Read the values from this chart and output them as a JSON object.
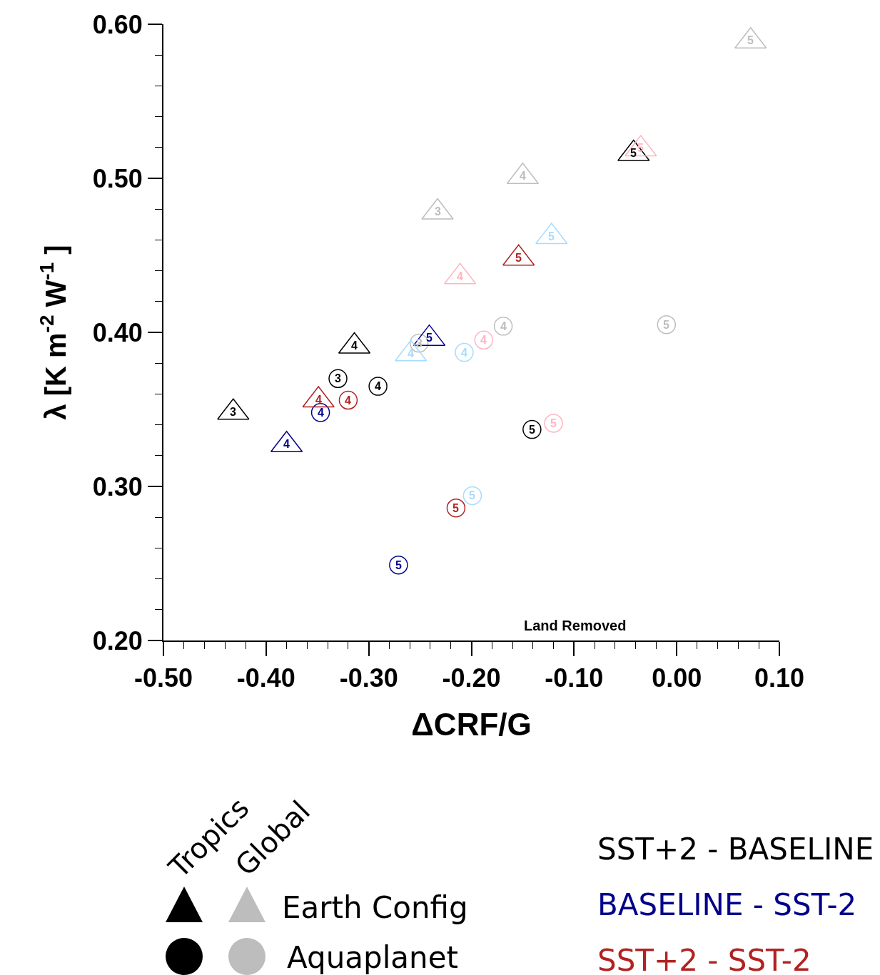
{
  "chart_data": {
    "type": "scatter",
    "xlabel": "ΔCRF/G",
    "ylabel": "λ [K m$^{-2}$ W$^{-1}$ ]",
    "xlim": [
      -0.5,
      0.1
    ],
    "ylim": [
      0.2,
      0.6
    ],
    "xticks": [
      {
        "value": -0.5,
        "label": "-0.50"
      },
      {
        "value": -0.48,
        "label": null
      },
      {
        "value": -0.46,
        "label": null
      },
      {
        "value": -0.44,
        "label": null
      },
      {
        "value": -0.42,
        "label": null
      },
      {
        "value": -0.4,
        "label": "-0.40"
      },
      {
        "value": -0.38,
        "label": null
      },
      {
        "value": -0.36,
        "label": null
      },
      {
        "value": -0.34,
        "label": null
      },
      {
        "value": -0.32,
        "label": null
      },
      {
        "value": -0.3,
        "label": "-0.30"
      },
      {
        "value": -0.28,
        "label": null
      },
      {
        "value": -0.26,
        "label": null
      },
      {
        "value": -0.24,
        "label": null
      },
      {
        "value": -0.22,
        "label": null
      },
      {
        "value": -0.2,
        "label": "-0.20"
      },
      {
        "value": -0.18,
        "label": null
      },
      {
        "value": -0.16,
        "label": null
      },
      {
        "value": -0.14,
        "label": null
      },
      {
        "value": -0.12,
        "label": null
      },
      {
        "value": -0.1,
        "label": "-0.10"
      },
      {
        "value": -0.08,
        "label": null
      },
      {
        "value": -0.06,
        "label": null
      },
      {
        "value": -0.04,
        "label": null
      },
      {
        "value": -0.02,
        "label": null
      },
      {
        "value": 0,
        "label": "0.00"
      },
      {
        "value": 0.02,
        "label": null
      },
      {
        "value": 0.04,
        "label": null
      },
      {
        "value": 0.06,
        "label": null
      },
      {
        "value": 0.08,
        "label": null
      },
      {
        "value": 0.1,
        "label": "0.10"
      }
    ],
    "yticks": [
      {
        "value": 0.2,
        "label": "0.20"
      },
      {
        "value": 0.22,
        "label": null
      },
      {
        "value": 0.24,
        "label": null
      },
      {
        "value": 0.26,
        "label": null
      },
      {
        "value": 0.28,
        "label": null
      },
      {
        "value": 0.3,
        "label": "0.30"
      },
      {
        "value": 0.32,
        "label": null
      },
      {
        "value": 0.34,
        "label": null
      },
      {
        "value": 0.36,
        "label": null
      },
      {
        "value": 0.38,
        "label": null
      },
      {
        "value": 0.4,
        "label": "0.40"
      },
      {
        "value": 0.42,
        "label": null
      },
      {
        "value": 0.44,
        "label": null
      },
      {
        "value": 0.46,
        "label": null
      },
      {
        "value": 0.48,
        "label": null
      },
      {
        "value": 0.5,
        "label": "0.50"
      },
      {
        "value": 0.52,
        "label": null
      },
      {
        "value": 0.54,
        "label": null
      },
      {
        "value": 0.56,
        "label": null
      },
      {
        "value": 0.58,
        "label": null
      },
      {
        "value": 0.6,
        "label": "0.60"
      }
    ],
    "grid": false,
    "legend": "bottom",
    "series": [
      {
        "name": "SST+2 - BASELINE",
        "color": "#000000",
        "marker": "triangle",
        "x": [
          -0.432,
          -0.314,
          -0.042
        ],
        "values": [
          0.348,
          0.391,
          0.516
        ]
      },
      {
        "color": "#000000",
        "marker": "circle",
        "x": [
          -0.33,
          -0.291,
          -0.141
        ],
        "values": [
          0.37,
          0.365,
          0.337
        ]
      },
      {
        "color": "#bdbdbd",
        "marker": "triangle",
        "x": [
          -0.233,
          -0.15,
          0.072
        ],
        "values": [
          0.478,
          0.501,
          0.589
        ]
      },
      {
        "color": "#bdbdbd",
        "marker": "circle",
        "x": [
          -0.251,
          -0.169,
          -0.01
        ],
        "values": [
          0.393,
          0.404,
          0.405
        ]
      },
      {
        "name": "BASELINE - SST-2",
        "color": "#00008b",
        "marker": "triangle",
        "x": [
          -0.38,
          -0.241
        ],
        "values": [
          0.327,
          0.396
        ]
      },
      {
        "color": "#00008b",
        "marker": "circle",
        "x": [
          -0.347,
          -0.271
        ],
        "values": [
          0.348,
          0.249
        ]
      },
      {
        "color": "#a6dcff",
        "marker": "triangle",
        "x": [
          -0.259,
          -0.122
        ],
        "values": [
          0.386,
          0.462
        ]
      },
      {
        "color": "#a6dcff",
        "marker": "circle",
        "x": [
          -0.207,
          -0.199
        ],
        "values": [
          0.387,
          0.294
        ]
      },
      {
        "name": "SST+2 - SST-2",
        "color": "#b22222",
        "marker": "triangle",
        "x": [
          -0.349,
          -0.154
        ],
        "values": [
          0.356,
          0.448
        ]
      },
      {
        "color": "#b22222",
        "marker": "circle",
        "x": [
          -0.32,
          -0.215
        ],
        "values": [
          0.356,
          0.286
        ]
      },
      {
        "color": "#ffb6c1",
        "marker": "triangle",
        "x": [
          -0.211,
          -0.035
        ],
        "values": [
          0.436,
          0.519
        ]
      },
      {
        "color": "#ffb6c1",
        "marker": "circle",
        "x": [
          -0.188,
          -0.12
        ],
        "values": [
          0.395,
          0.341
        ]
      }
    ],
    "annotations": [
      "Land Removed",
      "Tropics",
      "Global",
      "Earth Config",
      "Aquaplanet",
      {
        "text": "3",
        "x": -0.432,
        "y": 0.348
      },
      {
        "text": "4",
        "x": -0.314,
        "y": 0.391
      },
      {
        "text": "5",
        "x": -0.042,
        "y": 0.516
      },
      {
        "text": "3",
        "x": -0.33,
        "y": 0.37
      },
      {
        "text": "4",
        "x": -0.291,
        "y": 0.365
      },
      {
        "text": "5",
        "x": -0.141,
        "y": 0.337
      },
      {
        "text": "3",
        "x": -0.233,
        "y": 0.478
      },
      {
        "text": "4",
        "x": -0.15,
        "y": 0.501
      },
      {
        "text": "5",
        "x": 0.072,
        "y": 0.589
      },
      {
        "text": "3",
        "x": -0.251,
        "y": 0.393
      },
      {
        "text": "4",
        "x": -0.169,
        "y": 0.404
      },
      {
        "text": "5",
        "x": -0.01,
        "y": 0.405
      },
      {
        "text": "4",
        "x": -0.38,
        "y": 0.327
      },
      {
        "text": "5",
        "x": -0.241,
        "y": 0.396
      },
      {
        "text": "4",
        "x": -0.347,
        "y": 0.348
      },
      {
        "text": "5",
        "x": -0.271,
        "y": 0.249
      },
      {
        "text": "4",
        "x": -0.259,
        "y": 0.386
      },
      {
        "text": "5",
        "x": -0.122,
        "y": 0.462
      },
      {
        "text": "4",
        "x": -0.207,
        "y": 0.387
      },
      {
        "text": "5",
        "x": -0.199,
        "y": 0.294
      },
      {
        "text": "4",
        "x": -0.349,
        "y": 0.356
      },
      {
        "text": "5",
        "x": -0.154,
        "y": 0.448
      },
      {
        "text": "4",
        "x": -0.32,
        "y": 0.356
      },
      {
        "text": "5",
        "x": -0.215,
        "y": 0.286
      },
      {
        "text": "4",
        "x": -0.211,
        "y": 0.436
      },
      {
        "text": "5",
        "x": -0.035,
        "y": 0.519
      },
      {
        "text": "4",
        "x": -0.188,
        "y": 0.395
      },
      {
        "text": "5",
        "x": -0.12,
        "y": 0.341
      }
    ]
  }
}
